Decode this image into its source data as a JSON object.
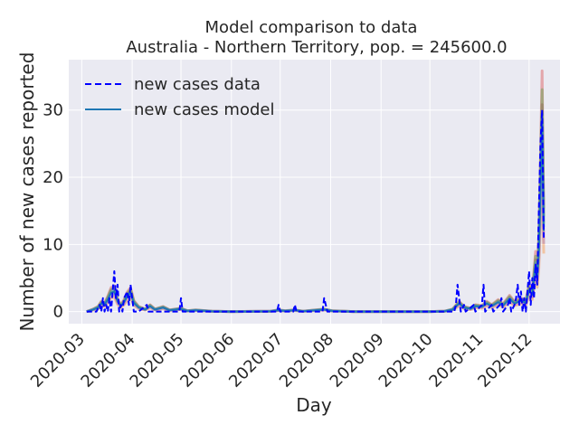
{
  "chart_data": {
    "type": "line",
    "title": "Model comparison to data",
    "subtitle": "Australia - Northern Territory, pop. = 245600.0",
    "xlabel": "Day",
    "ylabel": "Number of new cases reported",
    "x_ticks": [
      "2020-03",
      "2020-04",
      "2020-05",
      "2020-06",
      "2020-07",
      "2020-08",
      "2020-09",
      "2020-10",
      "2020-11",
      "2020-12"
    ],
    "y_ticks": [
      0,
      10,
      20,
      30
    ],
    "xlim": [
      "2020-02-22",
      "2020-12-20"
    ],
    "ylim": [
      -1.8,
      37.5
    ],
    "grid": true,
    "legend_position": "top-left",
    "colors": {
      "background": "#eaeaf2",
      "data": "#0000ff",
      "model": "#1f77b4",
      "ensemble": [
        "#d62728",
        "#ff7f0e",
        "#2ca02c",
        "#9467bd",
        "#8c564b",
        "#e377c2",
        "#17becf"
      ]
    },
    "series": [
      {
        "name": "new cases data",
        "style": "dashed",
        "points": [
          [
            "2020-03-04",
            0
          ],
          [
            "2020-03-10",
            0
          ],
          [
            "2020-03-12",
            1
          ],
          [
            "2020-03-13",
            0
          ],
          [
            "2020-03-14",
            2
          ],
          [
            "2020-03-15",
            0
          ],
          [
            "2020-03-16",
            1
          ],
          [
            "2020-03-17",
            0
          ],
          [
            "2020-03-18",
            2
          ],
          [
            "2020-03-19",
            0
          ],
          [
            "2020-03-20",
            3
          ],
          [
            "2020-03-21",
            6
          ],
          [
            "2020-03-22",
            2
          ],
          [
            "2020-03-23",
            4
          ],
          [
            "2020-03-24",
            0
          ],
          [
            "2020-03-25",
            1
          ],
          [
            "2020-03-26",
            0
          ],
          [
            "2020-03-27",
            2
          ],
          [
            "2020-03-29",
            3
          ],
          [
            "2020-03-30",
            1
          ],
          [
            "2020-03-31",
            4
          ],
          [
            "2020-04-01",
            2
          ],
          [
            "2020-04-02",
            0
          ],
          [
            "2020-04-05",
            0
          ],
          [
            "2020-04-10",
            1
          ],
          [
            "2020-04-11",
            0
          ],
          [
            "2020-04-30",
            0
          ],
          [
            "2020-05-01",
            2
          ],
          [
            "2020-05-02",
            0
          ],
          [
            "2020-06-29",
            0
          ],
          [
            "2020-06-30",
            1
          ],
          [
            "2020-07-01",
            0
          ],
          [
            "2020-07-09",
            0
          ],
          [
            "2020-07-10",
            1
          ],
          [
            "2020-07-11",
            0
          ],
          [
            "2020-07-27",
            0
          ],
          [
            "2020-07-28",
            2
          ],
          [
            "2020-07-29",
            1
          ],
          [
            "2020-07-30",
            0
          ],
          [
            "2020-10-16",
            0
          ],
          [
            "2020-10-17",
            1
          ],
          [
            "2020-10-18",
            4
          ],
          [
            "2020-10-19",
            2
          ],
          [
            "2020-10-20",
            0
          ],
          [
            "2020-10-22",
            1
          ],
          [
            "2020-10-23",
            0
          ],
          [
            "2020-10-28",
            1
          ],
          [
            "2020-10-29",
            0
          ],
          [
            "2020-11-02",
            1
          ],
          [
            "2020-11-03",
            4
          ],
          [
            "2020-11-04",
            0
          ],
          [
            "2020-11-08",
            1
          ],
          [
            "2020-11-09",
            0
          ],
          [
            "2020-11-13",
            1
          ],
          [
            "2020-11-14",
            2
          ],
          [
            "2020-11-15",
            0
          ],
          [
            "2020-11-18",
            1
          ],
          [
            "2020-11-19",
            2
          ],
          [
            "2020-11-20",
            0
          ],
          [
            "2020-11-22",
            1
          ],
          [
            "2020-11-23",
            2
          ],
          [
            "2020-11-24",
            4
          ],
          [
            "2020-11-25",
            1
          ],
          [
            "2020-11-26",
            3
          ],
          [
            "2020-11-27",
            0
          ],
          [
            "2020-11-28",
            2
          ],
          [
            "2020-11-29",
            0
          ],
          [
            "2020-11-30",
            3
          ],
          [
            "2020-12-01",
            6
          ],
          [
            "2020-12-02",
            1
          ],
          [
            "2020-12-03",
            5
          ],
          [
            "2020-12-04",
            2
          ],
          [
            "2020-12-05",
            7
          ],
          [
            "2020-12-06",
            4
          ],
          [
            "2020-12-07",
            15
          ],
          [
            "2020-12-08",
            25
          ],
          [
            "2020-12-09",
            30
          ],
          [
            "2020-12-10",
            11
          ]
        ]
      },
      {
        "name": "new cases model",
        "style": "solid",
        "points": [
          [
            "2020-03-04",
            0
          ],
          [
            "2020-03-08",
            0.3
          ],
          [
            "2020-03-11",
            0.6
          ],
          [
            "2020-03-13",
            1.2
          ],
          [
            "2020-03-15",
            1
          ],
          [
            "2020-03-17",
            1.8
          ],
          [
            "2020-03-19",
            2.8
          ],
          [
            "2020-03-21",
            3
          ],
          [
            "2020-03-23",
            1.5
          ],
          [
            "2020-03-25",
            0.8
          ],
          [
            "2020-03-27",
            1.4
          ],
          [
            "2020-03-29",
            2.3
          ],
          [
            "2020-03-31",
            2.8
          ],
          [
            "2020-04-02",
            1.3
          ],
          [
            "2020-04-05",
            0.6
          ],
          [
            "2020-04-09",
            0.3
          ],
          [
            "2020-04-12",
            0.8
          ],
          [
            "2020-04-15",
            0.3
          ],
          [
            "2020-04-20",
            0.6
          ],
          [
            "2020-04-24",
            0.2
          ],
          [
            "2020-05-01",
            0.4
          ],
          [
            "2020-05-05",
            0.1
          ],
          [
            "2020-05-10",
            0.2
          ],
          [
            "2020-05-20",
            0.05
          ],
          [
            "2020-06-01",
            0
          ],
          [
            "2020-06-25",
            0.05
          ],
          [
            "2020-06-30",
            0.2
          ],
          [
            "2020-07-04",
            0.1
          ],
          [
            "2020-07-10",
            0.2
          ],
          [
            "2020-07-15",
            0.05
          ],
          [
            "2020-07-28",
            0.3
          ],
          [
            "2020-08-02",
            0.1
          ],
          [
            "2020-08-15",
            0
          ],
          [
            "2020-10-01",
            0
          ],
          [
            "2020-10-10",
            0.05
          ],
          [
            "2020-10-15",
            0.3
          ],
          [
            "2020-10-19",
            1.2
          ],
          [
            "2020-10-22",
            0.6
          ],
          [
            "2020-10-26",
            0.4
          ],
          [
            "2020-10-29",
            0.8
          ],
          [
            "2020-11-02",
            0.7
          ],
          [
            "2020-11-05",
            1.2
          ],
          [
            "2020-11-08",
            0.8
          ],
          [
            "2020-11-12",
            1.4
          ],
          [
            "2020-11-15",
            0.9
          ],
          [
            "2020-11-19",
            1.9
          ],
          [
            "2020-11-22",
            1.2
          ],
          [
            "2020-11-26",
            1.6
          ],
          [
            "2020-11-29",
            1.3
          ],
          [
            "2020-12-01",
            3.2
          ],
          [
            "2020-12-03",
            2.5
          ],
          [
            "2020-12-05",
            7
          ],
          [
            "2020-12-06",
            5
          ],
          [
            "2020-12-07",
            9
          ],
          [
            "2020-12-08",
            18
          ],
          [
            "2020-12-09",
            28
          ],
          [
            "2020-12-10",
            12
          ]
        ]
      }
    ]
  }
}
